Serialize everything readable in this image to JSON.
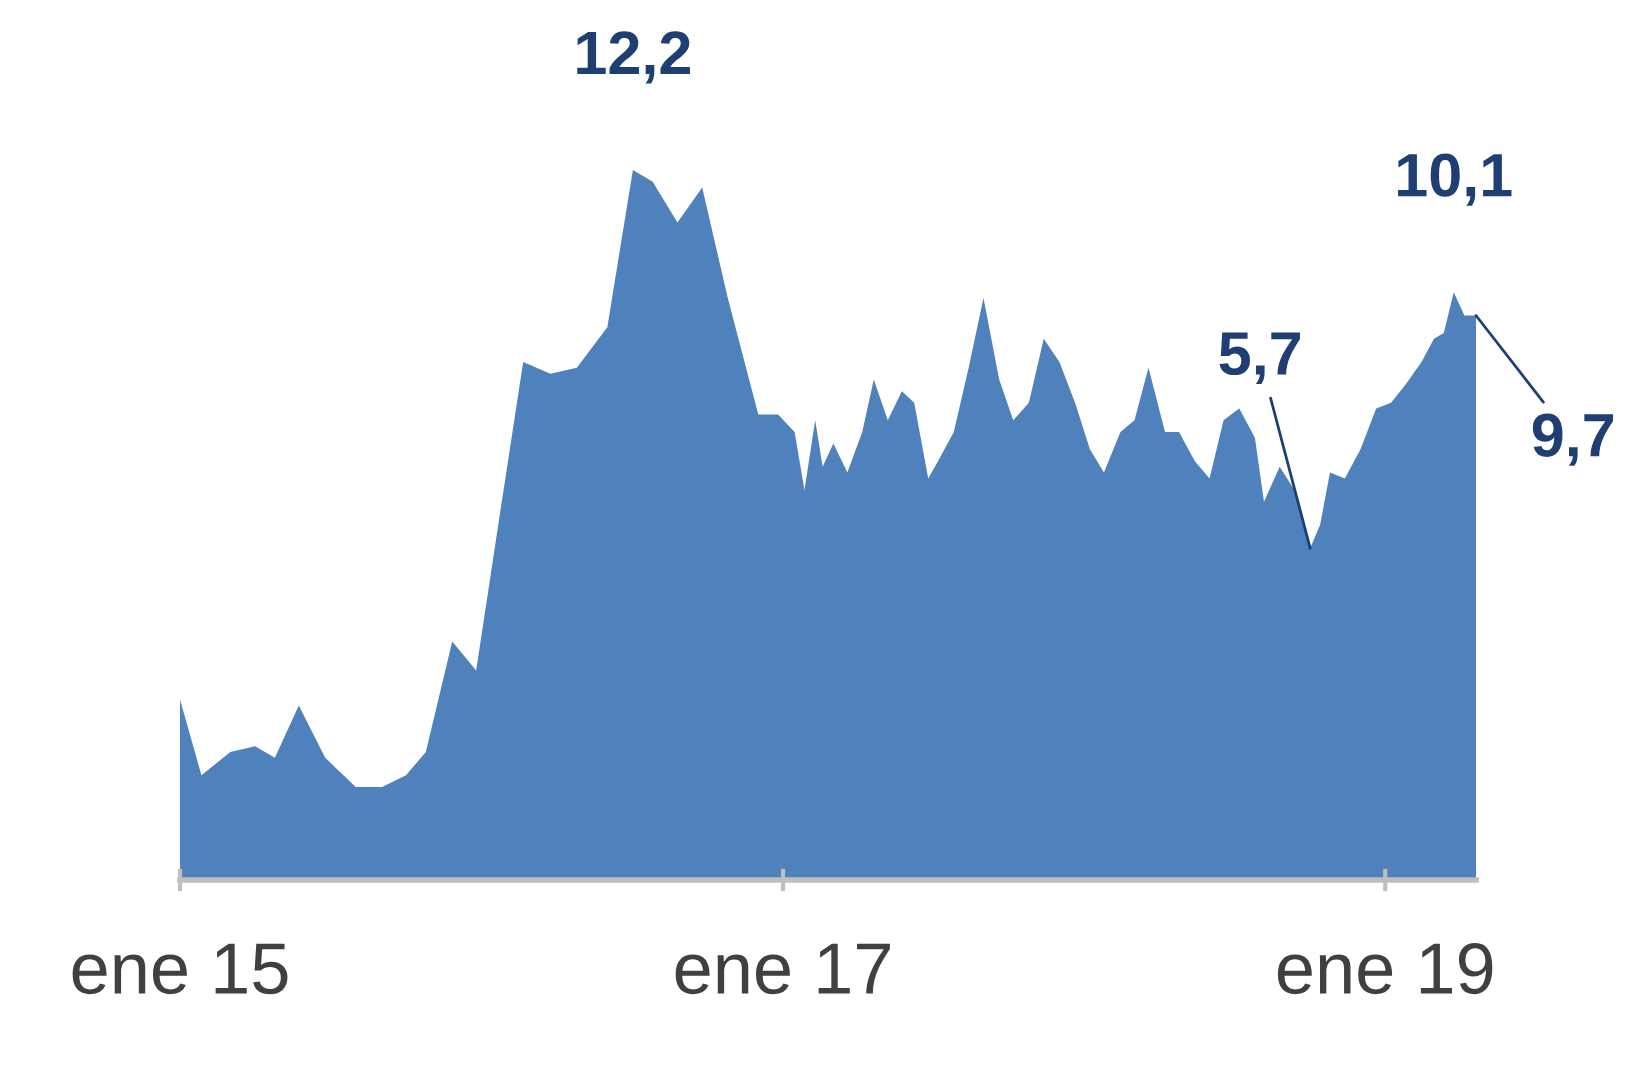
{
  "chart_data": {
    "type": "area",
    "color": "#4f81bd",
    "tick_labels": "x",
    "xlim": [
      "2015-01-01",
      "2019-04-21"
    ],
    "xticks": [
      {
        "value": "2015-01-01",
        "label": "ene 15"
      },
      {
        "value": "2017-01-01",
        "label": "ene 17"
      },
      {
        "value": "2019-01-01",
        "label": "ene 19"
      }
    ],
    "x": [
      "2015-01-01",
      "2015-01-27",
      "2015-03-03",
      "2015-04-02",
      "2015-04-26",
      "2015-05-25",
      "2015-06-26",
      "2015-08-02",
      "2015-09-03",
      "2015-10-02",
      "2015-10-26",
      "2015-11-27",
      "2015-12-26",
      "2016-01-25",
      "2016-02-21",
      "2016-03-25",
      "2016-04-26",
      "2016-06-02",
      "2016-07-03",
      "2016-07-27",
      "2016-08-26",
      "2016-09-25",
      "2016-10-26",
      "2016-12-02",
      "2016-12-26",
      "2017-01-15",
      "2017-01-27",
      "2017-02-09",
      "2017-02-18",
      "2017-03-03",
      "2017-03-20",
      "2017-04-07",
      "2017-04-21",
      "2017-05-08",
      "2017-05-25",
      "2017-06-09",
      "2017-06-26",
      "2017-07-08",
      "2017-07-27",
      "2017-08-14",
      "2017-09-01",
      "2017-09-20",
      "2017-10-07",
      "2017-10-26",
      "2017-11-13",
      "2017-12-02",
      "2017-12-21",
      "2018-01-08",
      "2018-01-25",
      "2018-02-14",
      "2018-03-03",
      "2018-03-20",
      "2018-04-09",
      "2018-04-26",
      "2018-05-15",
      "2018-06-02",
      "2018-06-19",
      "2018-07-08",
      "2018-07-27",
      "2018-08-07",
      "2018-08-26",
      "2018-09-13",
      "2018-10-02",
      "2018-10-14",
      "2018-10-26",
      "2018-11-13",
      "2018-12-02",
      "2018-12-21",
      "2019-01-08",
      "2019-01-25",
      "2019-02-14",
      "2019-03-01",
      "2019-03-13",
      "2019-03-25",
      "2019-04-07",
      "2019-04-21"
    ],
    "values": [
      3.1,
      1.8,
      2.2,
      2.3,
      2.1,
      3.0,
      2.1,
      1.6,
      1.6,
      1.8,
      2.2,
      4.1,
      3.6,
      6.4,
      8.9,
      8.7,
      8.8,
      9.5,
      12.2,
      12.0,
      11.3,
      11.9,
      10.0,
      8.0,
      8.0,
      7.7,
      6.7,
      7.9,
      7.1,
      7.5,
      7.0,
      7.7,
      8.6,
      7.9,
      8.4,
      8.2,
      6.9,
      7.2,
      7.7,
      8.8,
      10.0,
      8.6,
      7.9,
      8.2,
      9.3,
      8.9,
      8.2,
      7.4,
      7.0,
      7.7,
      7.9,
      8.8,
      7.7,
      7.7,
      7.2,
      6.9,
      7.9,
      8.1,
      7.6,
      6.5,
      7.1,
      6.7,
      5.7,
      6.1,
      7.0,
      6.9,
      7.4,
      8.1,
      8.2,
      8.5,
      8.9,
      9.3,
      9.4,
      10.1,
      9.7,
      9.7
    ],
    "value_labels": [
      null,
      null,
      null,
      null,
      null,
      null,
      null,
      null,
      null,
      null,
      null,
      null,
      null,
      null,
      null,
      null,
      null,
      null,
      "12,2",
      null,
      null,
      null,
      null,
      null,
      null,
      null,
      null,
      null,
      null,
      null,
      null,
      null,
      null,
      null,
      null,
      null,
      null,
      null,
      null,
      null,
      null,
      null,
      null,
      null,
      null,
      null,
      null,
      null,
      null,
      null,
      null,
      null,
      null,
      null,
      null,
      null,
      null,
      null,
      null,
      null,
      null,
      null,
      "5,7",
      null,
      null,
      null,
      null,
      null,
      null,
      null,
      null,
      null,
      null,
      "10,1",
      null,
      "9,7"
    ]
  }
}
